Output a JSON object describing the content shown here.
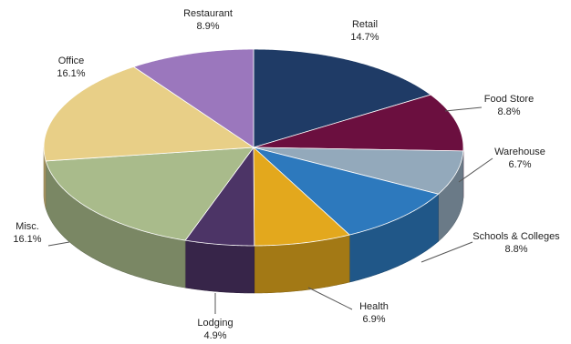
{
  "chart_data": {
    "type": "pie",
    "title": "",
    "slices": [
      {
        "label": "Retail",
        "value": 14.7,
        "display": "14.7%",
        "color": "#1f3b66",
        "label_side": "right"
      },
      {
        "label": "Food Store",
        "value": 8.8,
        "display": "8.8%",
        "color": "#6b0f3f",
        "label_side": "right"
      },
      {
        "label": "Warehouse",
        "value": 6.7,
        "display": "6.7%",
        "color": "#93a9bb",
        "label_side": "right"
      },
      {
        "label": "Schools & Colleges",
        "value": 8.8,
        "display": "8.8%",
        "color": "#2d79bd",
        "label_side": "right"
      },
      {
        "label": "Health",
        "value": 6.9,
        "display": "6.9%",
        "color": "#e3a81d",
        "label_side": "right"
      },
      {
        "label": "Lodging",
        "value": 4.9,
        "display": "4.9%",
        "color": "#4c3466",
        "label_side": "center"
      },
      {
        "label": "Misc.",
        "value": 16.1,
        "display": "16.1%",
        "color": "#a9bb8b",
        "label_side": "left"
      },
      {
        "label": "Office",
        "value": 16.1,
        "display": "16.1%",
        "color": "#e8cf87",
        "label_side": "left"
      },
      {
        "label": "Restaurant",
        "value": 8.9,
        "display": "8.9%",
        "color": "#9b77bd",
        "label_side": "center"
      }
    ],
    "style": "3d",
    "legend": "none",
    "grid": false
  }
}
